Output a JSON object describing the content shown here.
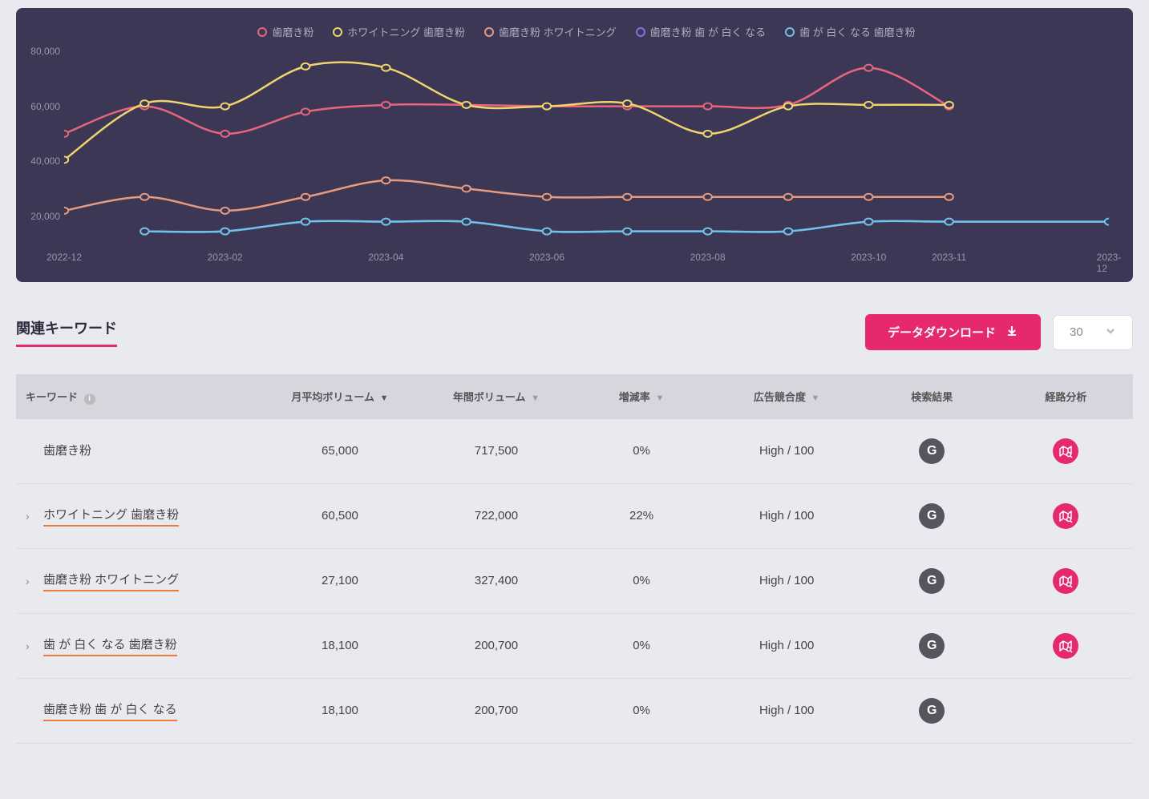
{
  "chart": {
    "type": "line",
    "background_color": "#3C3754",
    "grid": false,
    "y_axis": {
      "ticks": [
        20000,
        40000,
        60000,
        80000
      ],
      "labels": [
        "20,000",
        "40,000",
        "60,000",
        "80,000"
      ],
      "color": "#9a95ab",
      "fontsize": 12,
      "min": 10000,
      "max": 80000
    },
    "x_axis": {
      "labels": [
        "2022-12",
        "2023-02",
        "2023-04",
        "2023-06",
        "2023-08",
        "2023-10",
        "2023-11",
        "2023-12"
      ],
      "positions": [
        0,
        15.4,
        30.8,
        46.2,
        61.6,
        77,
        84.7,
        100
      ],
      "color": "#9a95ab",
      "fontsize": 12
    },
    "line_width": 2.5,
    "marker_size": 4,
    "marker_style": "circle",
    "series": [
      {
        "label": "歯磨き粉",
        "color": "#E8657E",
        "x": [
          0,
          7.7,
          15.4,
          23.1,
          30.8,
          38.5,
          46.2,
          53.9,
          61.6,
          69.3,
          77,
          84.7
        ],
        "y": [
          50000,
          60000,
          50000,
          58000,
          60500,
          60500,
          60000,
          60000,
          60000,
          60500,
          74000,
          60000
        ]
      },
      {
        "label": "ホワイトニング 歯磨き粉",
        "color": "#F0D56E",
        "x": [
          0,
          7.7,
          15.4,
          23.1,
          30.8,
          38.5,
          46.2,
          53.9,
          61.6,
          69.3,
          77,
          84.7
        ],
        "y": [
          40500,
          61000,
          60000,
          74500,
          74000,
          60500,
          60000,
          61000,
          50000,
          60000,
          60500,
          60500
        ]
      },
      {
        "label": "歯磨き粉 ホワイトニング",
        "color": "#E89A7E",
        "x": [
          0,
          7.7,
          15.4,
          23.1,
          30.8,
          38.5,
          46.2,
          53.9,
          61.6,
          69.3,
          77,
          84.7
        ],
        "y": [
          22000,
          27000,
          22000,
          27000,
          33000,
          30000,
          27000,
          27000,
          27000,
          27000,
          27000,
          27000
        ]
      },
      {
        "label": "歯磨き粉 歯 が 白く なる",
        "color": "#8B6DE8",
        "x": [
          7.7,
          15.4,
          23.1,
          30.8,
          38.5,
          46.2,
          53.9,
          61.6,
          69.3,
          77,
          84.7,
          100
        ],
        "y": [
          14500,
          14500,
          18000,
          18000,
          18000,
          14500,
          14500,
          14500,
          14500,
          18000,
          18000,
          18000
        ]
      },
      {
        "label": "歯 が 白く なる 歯磨き粉",
        "color": "#6DC4E8",
        "x": [
          7.7,
          15.4,
          23.1,
          30.8,
          38.5,
          46.2,
          53.9,
          61.6,
          69.3,
          77,
          84.7,
          100
        ],
        "y": [
          14500,
          14500,
          18000,
          18000,
          18000,
          14500,
          14500,
          14500,
          14500,
          18000,
          18000,
          18000
        ]
      }
    ]
  },
  "section": {
    "title": "関連キーワード",
    "download_label": "データダウンロード",
    "select_value": "30"
  },
  "table": {
    "columns": {
      "keyword": "キーワード",
      "monthly_volume": "月平均ボリューム",
      "annual_volume": "年間ボリューム",
      "change_rate": "増減率",
      "competition": "広告競合度",
      "search_result": "検索結果",
      "route_analysis": "経路分析"
    },
    "rows": [
      {
        "keyword": "歯磨き粉",
        "expandable": false,
        "underlined": false,
        "monthly_volume": "65,000",
        "annual_volume": "717,500",
        "change_rate": "0%",
        "rate_positive": false,
        "competition": "High / 100",
        "has_route": true
      },
      {
        "keyword": "ホワイトニング 歯磨き粉",
        "expandable": true,
        "underlined": true,
        "monthly_volume": "60,500",
        "annual_volume": "722,000",
        "change_rate": "22%",
        "rate_positive": true,
        "competition": "High / 100",
        "has_route": true
      },
      {
        "keyword": "歯磨き粉 ホワイトニング",
        "expandable": true,
        "underlined": true,
        "monthly_volume": "27,100",
        "annual_volume": "327,400",
        "change_rate": "0%",
        "rate_positive": false,
        "competition": "High / 100",
        "has_route": true
      },
      {
        "keyword": "歯 が 白く なる 歯磨き粉",
        "expandable": true,
        "underlined": true,
        "monthly_volume": "18,100",
        "annual_volume": "200,700",
        "change_rate": "0%",
        "rate_positive": false,
        "competition": "High / 100",
        "has_route": true
      },
      {
        "keyword": "歯磨き粉 歯 が 白く なる",
        "expandable": false,
        "underlined": true,
        "monthly_volume": "18,100",
        "annual_volume": "200,700",
        "change_rate": "0%",
        "rate_positive": false,
        "competition": "High / 100",
        "has_route": false
      }
    ]
  }
}
